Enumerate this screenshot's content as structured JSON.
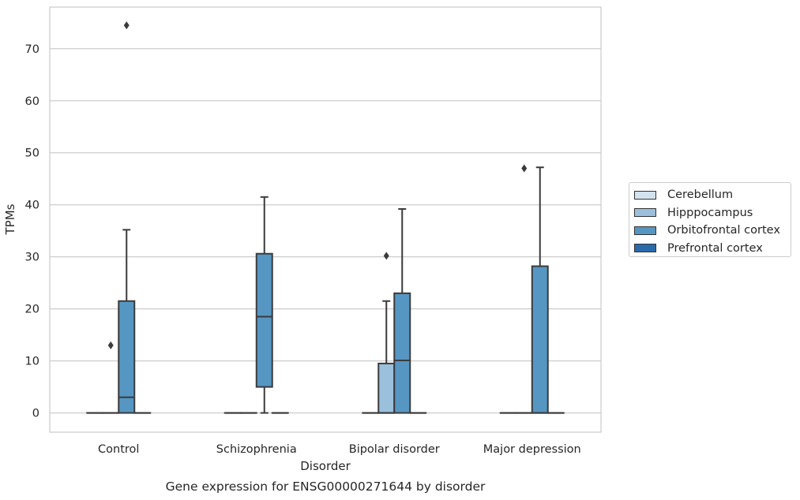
{
  "chart_data": {
    "type": "box",
    "title": "Gene expression for ENSG00000271644 by disorder",
    "xlabel": "Disorder",
    "ylabel": "TPMs",
    "ylim": [
      -3.7,
      78
    ],
    "yticks": [
      0,
      10,
      20,
      30,
      40,
      50,
      60,
      70
    ],
    "grid": "horizontal",
    "legend_position": "right",
    "categories": [
      "Control",
      "Schizophrenia",
      "Bipolar disorder",
      "Major depression"
    ],
    "series": [
      {
        "name": "Cerebellum",
        "color": "#d3e2f0",
        "boxes": [
          {
            "min": 0,
            "q1": 0,
            "median": 0,
            "q3": 0,
            "max": 0,
            "outliers": []
          },
          {
            "min": 0,
            "q1": 0,
            "median": 0,
            "q3": 0,
            "max": 0,
            "outliers": []
          },
          {
            "min": 0,
            "q1": 0,
            "median": 0,
            "q3": 0,
            "max": 0,
            "outliers": []
          },
          {
            "min": 0,
            "q1": 0,
            "median": 0,
            "q3": 0,
            "max": 0,
            "outliers": []
          }
        ]
      },
      {
        "name": "Hipppocampus",
        "color": "#9ac0dc",
        "boxes": [
          {
            "min": 0,
            "q1": 0,
            "median": 0,
            "q3": 0,
            "max": 0,
            "outliers": [
              13
            ]
          },
          {
            "min": 0,
            "q1": 0,
            "median": 0,
            "q3": 0,
            "max": 0,
            "outliers": []
          },
          {
            "min": 0,
            "q1": 0,
            "median": 0,
            "q3": 9.5,
            "max": 21.5,
            "outliers": [
              30.2
            ]
          },
          {
            "min": 0,
            "q1": 0,
            "median": 0,
            "q3": 0,
            "max": 0,
            "outliers": [
              47
            ]
          }
        ]
      },
      {
        "name": "Orbitofrontal cortex",
        "color": "#5696c3",
        "boxes": [
          {
            "min": 0,
            "q1": 0,
            "median": 3,
            "q3": 21.5,
            "max": 35.2,
            "outliers": [
              74.5
            ]
          },
          {
            "min": 0,
            "q1": 5,
            "median": 18.5,
            "q3": 30.6,
            "max": 41.5,
            "outliers": []
          },
          {
            "min": 0,
            "q1": 0,
            "median": 10.1,
            "q3": 23,
            "max": 39.2,
            "outliers": []
          },
          {
            "min": 0,
            "q1": 0,
            "median": 0,
            "q3": 28.2,
            "max": 47.2,
            "outliers": []
          }
        ]
      },
      {
        "name": "Prefrontal cortex",
        "color": "#2a6aaa",
        "boxes": [
          {
            "min": 0,
            "q1": 0,
            "median": 0,
            "q3": 0,
            "max": 0,
            "outliers": []
          },
          {
            "min": 0,
            "q1": 0,
            "median": 0,
            "q3": 0,
            "max": 0,
            "outliers": []
          },
          {
            "min": 0,
            "q1": 0,
            "median": 0,
            "q3": 0,
            "max": 0,
            "outliers": []
          },
          {
            "min": 0,
            "q1": 0,
            "median": 0,
            "q3": 0,
            "max": 0,
            "outliers": []
          }
        ]
      }
    ]
  }
}
